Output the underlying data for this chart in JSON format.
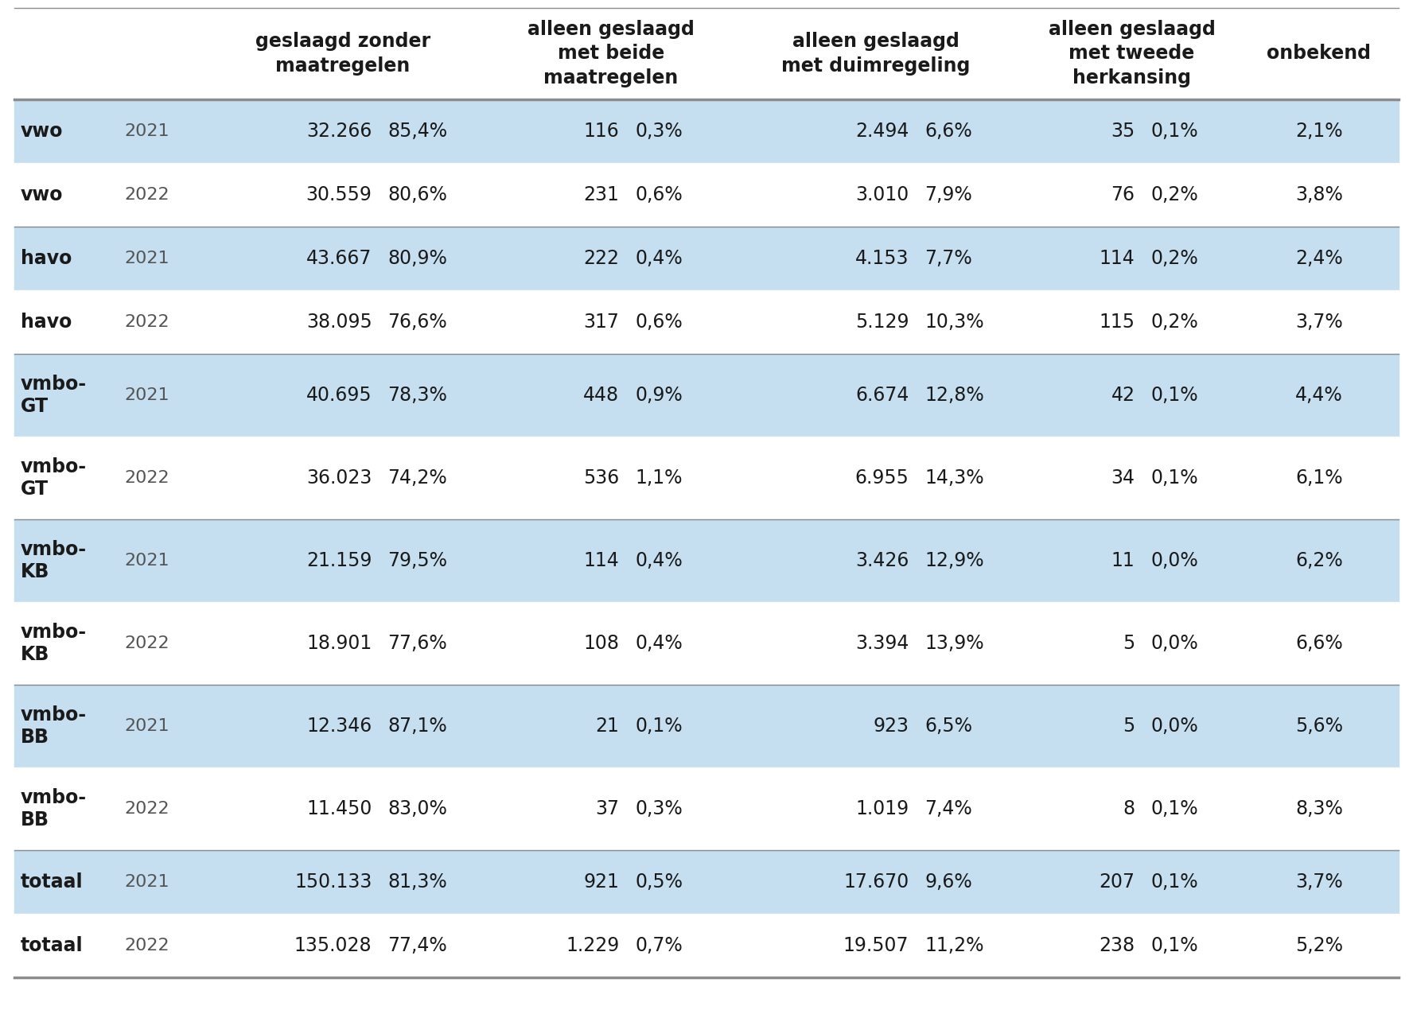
{
  "headers": [
    "geslaagd zonder\nmaatregelen",
    "alleen geslaagd\nmet beide\nmaatregelen",
    "alleen geslaagd\nmet duimregeling",
    "alleen geslaagd\nmet tweede\nherkansing",
    "onbekend"
  ],
  "rows": [
    [
      "vwo",
      "2021",
      "32.266",
      "85,4%",
      "116",
      "0,3%",
      "2.494",
      "6,6%",
      "35",
      "0,1%",
      "2,1%"
    ],
    [
      "vwo",
      "2022",
      "30.559",
      "80,6%",
      "231",
      "0,6%",
      "3.010",
      "7,9%",
      "76",
      "0,2%",
      "3,8%"
    ],
    [
      "havo",
      "2021",
      "43.667",
      "80,9%",
      "222",
      "0,4%",
      "4.153",
      "7,7%",
      "114",
      "0,2%",
      "2,4%"
    ],
    [
      "havo",
      "2022",
      "38.095",
      "76,6%",
      "317",
      "0,6%",
      "5.129",
      "10,3%",
      "115",
      "0,2%",
      "3,7%"
    ],
    [
      "vmbo-\nGT",
      "2021",
      "40.695",
      "78,3%",
      "448",
      "0,9%",
      "6.674",
      "12,8%",
      "42",
      "0,1%",
      "4,4%"
    ],
    [
      "vmbo-\nGT",
      "2022",
      "36.023",
      "74,2%",
      "536",
      "1,1%",
      "6.955",
      "14,3%",
      "34",
      "0,1%",
      "6,1%"
    ],
    [
      "vmbo-\nKB",
      "2021",
      "21.159",
      "79,5%",
      "114",
      "0,4%",
      "3.426",
      "12,9%",
      "11",
      "0,0%",
      "6,2%"
    ],
    [
      "vmbo-\nKB",
      "2022",
      "18.901",
      "77,6%",
      "108",
      "0,4%",
      "3.394",
      "13,9%",
      "5",
      "0,0%",
      "6,6%"
    ],
    [
      "vmbo-\nBB",
      "2021",
      "12.346",
      "87,1%",
      "21",
      "0,1%",
      "923",
      "6,5%",
      "5",
      "0,0%",
      "5,6%"
    ],
    [
      "vmbo-\nBB",
      "2022",
      "11.450",
      "83,0%",
      "37",
      "0,3%",
      "1.019",
      "7,4%",
      "8",
      "0,1%",
      "8,3%"
    ],
    [
      "totaal",
      "2021",
      "150.133",
      "81,3%",
      "921",
      "0,5%",
      "17.670",
      "9,6%",
      "207",
      "0,1%",
      "3,7%"
    ],
    [
      "totaal",
      "2022",
      "135.028",
      "77,4%",
      "1.229",
      "0,7%",
      "19.507",
      "11,2%",
      "238",
      "0,1%",
      "5,2%"
    ]
  ],
  "bg_light": "#c5dff0",
  "bg_white": "#ffffff",
  "bg_header": "#ffffff",
  "separator_color": "#8c8c8c",
  "separator_lw": 2.5,
  "text_color_bold": "#1a1a1a",
  "text_color_year": "#555555",
  "font_size_header": 17,
  "font_size_body": 17,
  "font_size_year": 16,
  "row_alternating": [
    "#c5dff0",
    "#ffffff",
    "#c5dff0",
    "#ffffff",
    "#c5dff0",
    "#ffffff",
    "#c5dff0",
    "#ffffff",
    "#c5dff0",
    "#ffffff",
    "#c5dff0",
    "#ffffff"
  ]
}
